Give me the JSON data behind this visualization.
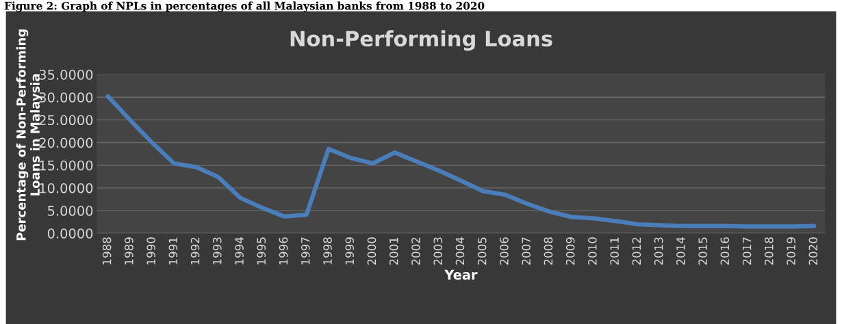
{
  "chart_data": {
    "type": "line",
    "title": "Non-Performing Loans",
    "annotations": [
      "Figure 2: Graph of NPLs in percentages of all Malaysian banks from 1988 to 2020"
    ],
    "xlabel": "Year",
    "ylabel": "Percentage of Non-Performing\nLoans in Malaysia",
    "categories": [
      "1988",
      "1989",
      "1990",
      "1991",
      "1992",
      "1993",
      "1994",
      "1995",
      "1996",
      "1997",
      "1998",
      "1999",
      "2000",
      "2001",
      "2002",
      "2003",
      "2004",
      "2005",
      "2006",
      "2007",
      "2008",
      "2009",
      "2010",
      "2011",
      "2012",
      "2013",
      "2014",
      "2015",
      "2016",
      "2017",
      "2018",
      "2019",
      "2020"
    ],
    "series": [
      {
        "color": "#4a7ebb",
        "values": [
          30.2,
          25.0,
          20.0,
          15.4,
          14.6,
          12.4,
          7.8,
          5.6,
          3.7,
          4.1,
          18.6,
          16.6,
          15.4,
          17.8,
          15.8,
          13.8,
          11.6,
          9.3,
          8.5,
          6.5,
          4.8,
          3.6,
          3.3,
          2.7,
          2.0,
          1.8,
          1.6,
          1.6,
          1.6,
          1.5,
          1.5,
          1.5,
          1.6
        ]
      }
    ],
    "ylim": [
      0,
      35
    ],
    "yticks": [
      {
        "value": 0,
        "label": "0.0000"
      },
      {
        "value": 5,
        "label": "5.0000"
      },
      {
        "value": 10,
        "label": "10.0000"
      },
      {
        "value": 15,
        "label": "15.0000"
      },
      {
        "value": 20,
        "label": "20.0000"
      },
      {
        "value": 25,
        "label": "25.0000"
      },
      {
        "value": 30,
        "label": "30.0000"
      },
      {
        "value": 35,
        "label": "35.0000"
      }
    ],
    "grid": "y",
    "legend": false,
    "marker": "none",
    "line_style": "solid"
  }
}
